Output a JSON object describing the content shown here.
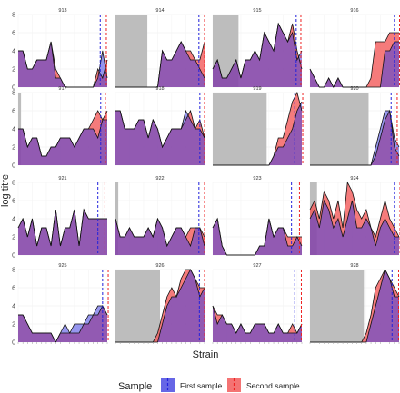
{
  "chart_data": {
    "type": "area",
    "ylabel": "log titre",
    "xlabel": "Strain",
    "ylim": [
      0,
      8
    ],
    "yticks": [
      0,
      2,
      4,
      6,
      8
    ],
    "grid": true,
    "legend_position": "bottom",
    "legend": {
      "title": "Sample",
      "entries": [
        {
          "name": "First sample",
          "color": "#3b3bd9"
        },
        {
          "name": "Second sample",
          "color": "#f05a5a"
        }
      ]
    },
    "colors": {
      "first_fill": "#4040e0",
      "second_fill": "#f25a5a",
      "first_line": "#2222dd",
      "second_line": "#ee2222",
      "shade": "#bdbdbd"
    },
    "n_strains": 20,
    "panels": [
      {
        "id": "913",
        "shade": null,
        "first_vline": 17.5,
        "second_vline": 18.8,
        "first": [
          4,
          4,
          2,
          2,
          3,
          3,
          3,
          5,
          1,
          1,
          0,
          0,
          0,
          0,
          0,
          0,
          0,
          1,
          4,
          1
        ],
        "second": [
          4,
          4,
          2,
          2,
          3,
          3,
          3,
          5,
          2,
          1,
          0,
          0,
          0,
          0,
          0,
          0,
          0,
          2,
          1,
          3
        ]
      },
      {
        "id": "914",
        "shade": [
          0,
          6.8
        ],
        "first_vline": 17.8,
        "second_vline": 19.0,
        "first": [
          0,
          0,
          0,
          0,
          0,
          0,
          0,
          0,
          0,
          0,
          4,
          3,
          3,
          4,
          5,
          4,
          3,
          3,
          2,
          1
        ],
        "second": [
          0,
          0,
          0,
          0,
          0,
          0,
          0,
          0,
          0,
          0,
          4,
          3,
          3,
          4,
          5,
          4,
          4,
          3,
          3,
          5
        ]
      },
      {
        "id": "915",
        "shade": [
          0,
          5.5
        ],
        "first_vline": 17.8,
        "second_vline": 18.8,
        "first": [
          2,
          3,
          1,
          1,
          2,
          3,
          1,
          3,
          3,
          4,
          3,
          6,
          5,
          4,
          7,
          6,
          5,
          6,
          3,
          4
        ],
        "second": [
          2,
          3,
          1,
          1,
          2,
          3,
          1,
          3,
          3,
          4,
          3,
          6,
          5,
          4,
          7,
          6,
          5,
          7,
          4,
          2
        ]
      },
      {
        "id": "916",
        "shade": null,
        "first_vline": 18.0,
        "second_vline": 19.1,
        "first": [
          2,
          1,
          0,
          0,
          1,
          0,
          1,
          0,
          0,
          0,
          0,
          0,
          0,
          0,
          0,
          0,
          4,
          4,
          5,
          5
        ],
        "second": [
          2,
          1,
          0,
          0,
          1,
          0,
          1,
          0,
          0,
          0,
          0,
          0,
          0,
          1,
          5,
          5,
          5,
          6,
          6,
          6
        ]
      },
      {
        "id": "917",
        "shade": [
          0,
          0.6
        ],
        "first_vline": 17.6,
        "second_vline": 18.6,
        "first": [
          4,
          4,
          2,
          3,
          3,
          1,
          1,
          2,
          2,
          3,
          3,
          3,
          2,
          3,
          4,
          4,
          4,
          3,
          5,
          5
        ],
        "second": [
          4,
          4,
          2,
          3,
          3,
          1,
          1,
          2,
          2,
          3,
          3,
          3,
          2,
          3,
          4,
          4,
          5,
          6,
          5,
          6
        ]
      },
      {
        "id": "918",
        "shade": null,
        "first_vline": 18.0,
        "second_vline": 19.0,
        "first": [
          6,
          6,
          4,
          4,
          4,
          5,
          5,
          3,
          5,
          4,
          2,
          3,
          4,
          4,
          4,
          6,
          5,
          4,
          4,
          3
        ],
        "second": [
          6,
          6,
          4,
          4,
          4,
          5,
          5,
          3,
          5,
          4,
          2,
          3,
          4,
          4,
          4,
          5,
          6,
          4,
          5,
          3
        ]
      },
      {
        "id": "919",
        "shade": [
          0,
          11.5
        ],
        "first_vline": 17.5,
        "second_vline": 19.2,
        "first": [
          0,
          0,
          0,
          0,
          0,
          0,
          0,
          0,
          0,
          0,
          0,
          0,
          0,
          1,
          2,
          2,
          3,
          4,
          6,
          7
        ],
        "second": [
          0,
          0,
          0,
          0,
          0,
          0,
          0,
          0,
          0,
          0,
          0,
          0,
          0,
          1,
          3,
          3,
          5,
          7,
          8,
          6
        ]
      },
      {
        "id": "920",
        "shade": [
          0,
          12.5
        ],
        "first_vline": 17.3,
        "second_vline": 18.6,
        "first": [
          0,
          0,
          0,
          0,
          0,
          0,
          0,
          0,
          0,
          0,
          0,
          0,
          0,
          0,
          2,
          4,
          6,
          6,
          3,
          2
        ],
        "second": [
          0,
          0,
          0,
          0,
          0,
          0,
          0,
          0,
          0,
          0,
          0,
          0,
          0,
          0,
          1,
          3,
          5,
          6,
          2,
          1
        ]
      },
      {
        "id": "921",
        "shade": null,
        "first_vline": 17.0,
        "second_vline": 18.5,
        "first": [
          3,
          4,
          2,
          4,
          1,
          3,
          3,
          1,
          5,
          1,
          3,
          3,
          5,
          1,
          5,
          4,
          4,
          4,
          4,
          4
        ],
        "second": [
          3,
          4,
          2,
          4,
          1,
          3,
          3,
          1,
          5,
          1,
          3,
          3,
          5,
          1,
          5,
          4,
          4,
          4,
          4,
          4
        ]
      },
      {
        "id": "922",
        "shade": [
          0,
          0.6
        ],
        "first_vline": 17.8,
        "second_vline": 19.0,
        "first": [
          4,
          2,
          2,
          3,
          2,
          2,
          2,
          3,
          2,
          4,
          3,
          1,
          2,
          3,
          3,
          2,
          1,
          3,
          3,
          1
        ],
        "second": [
          4,
          2,
          2,
          3,
          2,
          2,
          2,
          3,
          2,
          4,
          3,
          1,
          2,
          3,
          3,
          2,
          3,
          3,
          3,
          2
        ]
      },
      {
        "id": "923",
        "shade": null,
        "first_vline": 16.8,
        "second_vline": 18.5,
        "first": [
          3,
          4,
          1,
          0,
          0,
          0,
          0,
          0,
          0,
          0,
          1,
          1,
          4,
          2,
          3,
          3,
          1,
          1,
          2,
          1
        ],
        "second": [
          3,
          4,
          1,
          0,
          0,
          0,
          0,
          0,
          0,
          0,
          1,
          1,
          4,
          2,
          3,
          3,
          2,
          2,
          2,
          2
        ]
      },
      {
        "id": "924",
        "shade": [
          0,
          1.5
        ],
        "first_vline": 18.0,
        "second_vline": 19.2,
        "first": [
          4,
          5,
          3,
          6,
          5,
          3,
          4,
          2,
          4,
          6,
          3,
          3,
          4,
          3,
          1,
          3,
          4,
          3,
          2,
          2
        ],
        "second": [
          5,
          6,
          4,
          7,
          6,
          4,
          6,
          3,
          8,
          7,
          5,
          4,
          5,
          3,
          2,
          4,
          6,
          4,
          3,
          2
        ]
      },
      {
        "id": "925",
        "shade": null,
        "first_vline": 18.0,
        "second_vline": 19.2,
        "first": [
          3,
          3,
          2,
          1,
          1,
          1,
          1,
          1,
          0,
          1,
          2,
          1,
          2,
          2,
          2,
          3,
          3,
          4,
          4,
          3
        ],
        "second": [
          3,
          3,
          2,
          1,
          1,
          1,
          1,
          1,
          0,
          1,
          1,
          1,
          1,
          1,
          2,
          2,
          3,
          3,
          4,
          3
        ]
      },
      {
        "id": "926",
        "shade": [
          0,
          9.5
        ],
        "first_vline": 17.9,
        "second_vline": 19.0,
        "first": [
          0,
          0,
          0,
          0,
          0,
          0,
          0,
          0,
          0,
          0,
          2,
          4,
          5,
          5,
          6,
          7,
          8,
          7,
          5,
          6
        ],
        "second": [
          0,
          0,
          0,
          0,
          0,
          0,
          0,
          0,
          0,
          1,
          3,
          5,
          6,
          5,
          7,
          8,
          8,
          7,
          6,
          6
        ]
      },
      {
        "id": "927",
        "shade": null,
        "first_vline": 17.5,
        "second_vline": 18.9,
        "first": [
          4,
          2,
          3,
          2,
          2,
          1,
          2,
          1,
          1,
          2,
          2,
          2,
          1,
          1,
          2,
          1,
          1,
          1,
          1,
          2
        ],
        "second": [
          4,
          3,
          3,
          2,
          2,
          1,
          2,
          1,
          1,
          2,
          2,
          2,
          1,
          1,
          2,
          1,
          1,
          2,
          1,
          2
        ]
      },
      {
        "id": "928",
        "shade": [
          0,
          11.5
        ],
        "first_vline": 17.5,
        "second_vline": 18.9,
        "first": [
          0,
          0,
          0,
          0,
          0,
          0,
          0,
          0,
          0,
          0,
          0,
          0,
          0,
          2,
          4,
          6,
          8,
          7,
          5,
          5
        ],
        "second": [
          0,
          0,
          0,
          0,
          0,
          0,
          0,
          0,
          0,
          0,
          0,
          0,
          1,
          3,
          6,
          7,
          8,
          7,
          6,
          5
        ]
      }
    ]
  }
}
